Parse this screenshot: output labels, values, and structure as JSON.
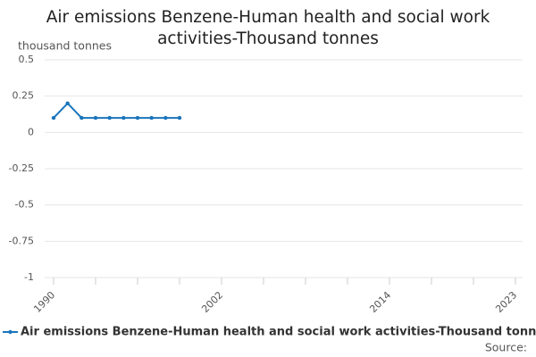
{
  "chart_data": {
    "type": "line",
    "title": "Air emissions Benzene-Human health and social work activities-Thousand tonnes",
    "y_label": "thousand tonnes",
    "x": [
      1990,
      1991,
      1992,
      1993,
      1994,
      1995,
      1996,
      1997,
      1998,
      1999
    ],
    "series": [
      {
        "name": "Air emissions Benzene-Human health and social work activities-Thousand tonnes",
        "color": "#1b75bb",
        "values": [
          0.1,
          0.2,
          0.1,
          0.1,
          0.1,
          0.1,
          0.1,
          0.1,
          0.1,
          0.1
        ]
      }
    ],
    "xlim": [
      1990,
      2023
    ],
    "xticks": [
      1990,
      {
        "value": 1993,
        "label": null
      },
      {
        "value": 1996,
        "label": null
      },
      {
        "value": 1999,
        "label": null
      },
      2002,
      {
        "value": 2005,
        "label": null
      },
      {
        "value": 2008,
        "label": null
      },
      {
        "value": 2011,
        "label": null
      },
      2014,
      {
        "value": 2017,
        "label": null
      },
      {
        "value": 2020,
        "label": null
      },
      2023
    ],
    "ylim": [
      -1,
      0.5
    ],
    "yticks": [
      -1,
      -0.75,
      -0.5,
      -0.25,
      0,
      0.25,
      0.5
    ],
    "grid": true,
    "legend": "bottom",
    "source": "Source:"
  }
}
